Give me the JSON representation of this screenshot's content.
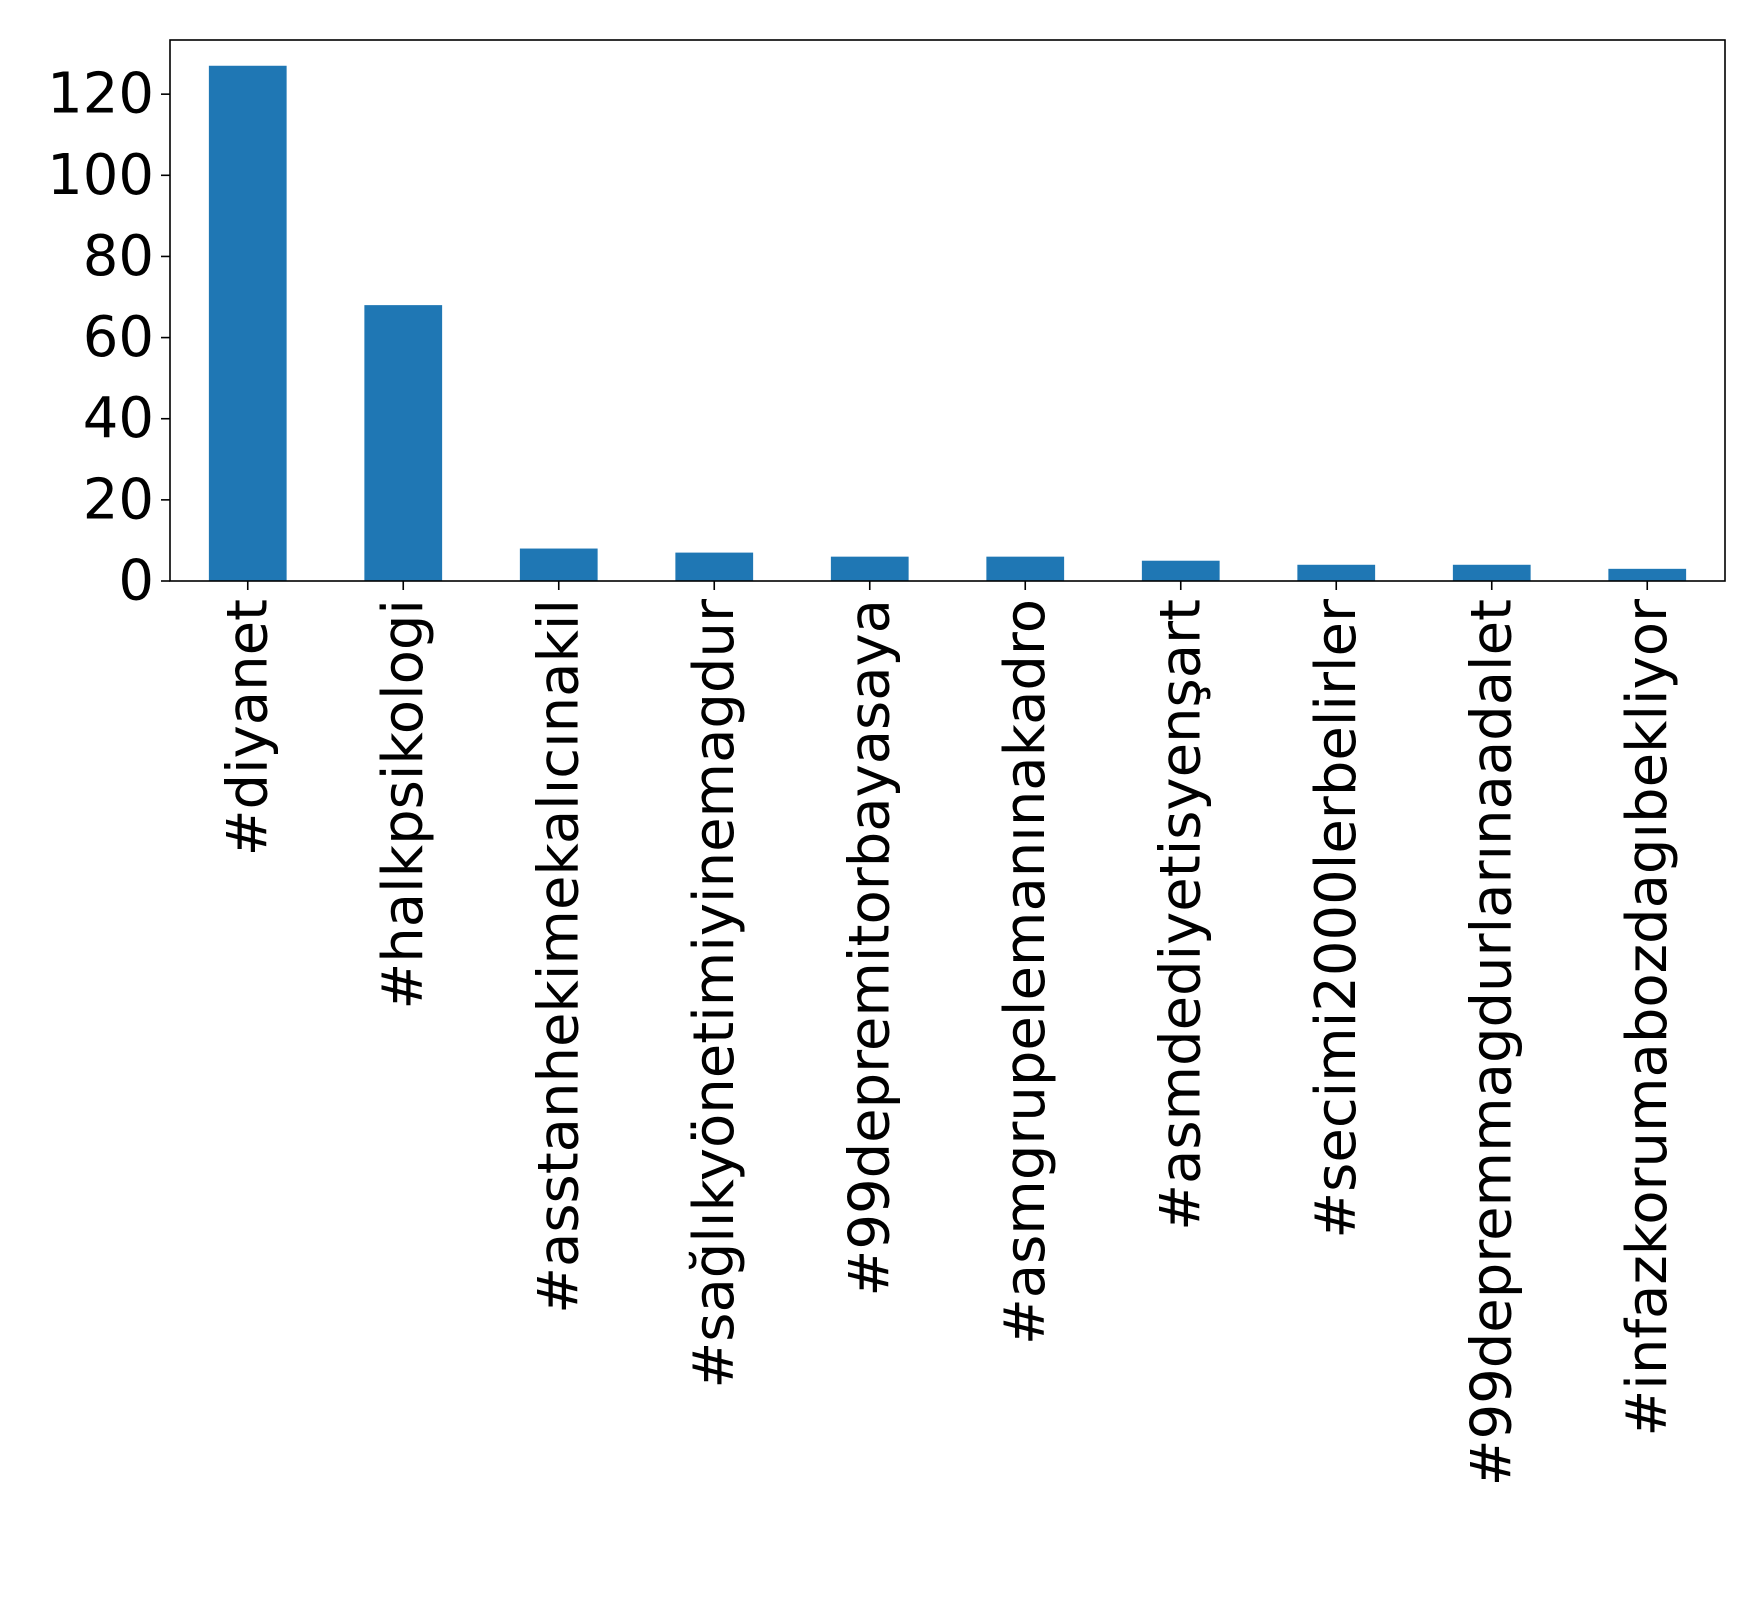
{
  "chart_data": {
    "type": "bar",
    "title": "",
    "xlabel": "",
    "ylabel": "",
    "categories": [
      "#diyanet",
      "#halkpsikologi",
      "#asstanhekimekalıcınakil",
      "#sağlıkyönetimiyinemagdur",
      "#99depremitorbayasaya",
      "#asmgrupelemanınakadro",
      "#asmdediyetisyenşart",
      "#secimi2000lerbelirler",
      "#99depremmagdurlarınaadalet",
      "#infazkorumabozdagıbekliyor"
    ],
    "values": [
      127,
      68,
      8,
      7,
      6,
      6,
      5,
      4,
      4,
      3
    ],
    "ylim": [
      0,
      133.35
    ],
    "yticks": [
      0,
      20,
      40,
      60,
      80,
      100,
      120
    ],
    "bar_color": "#1f77b4",
    "grid": false,
    "legend": "none"
  }
}
